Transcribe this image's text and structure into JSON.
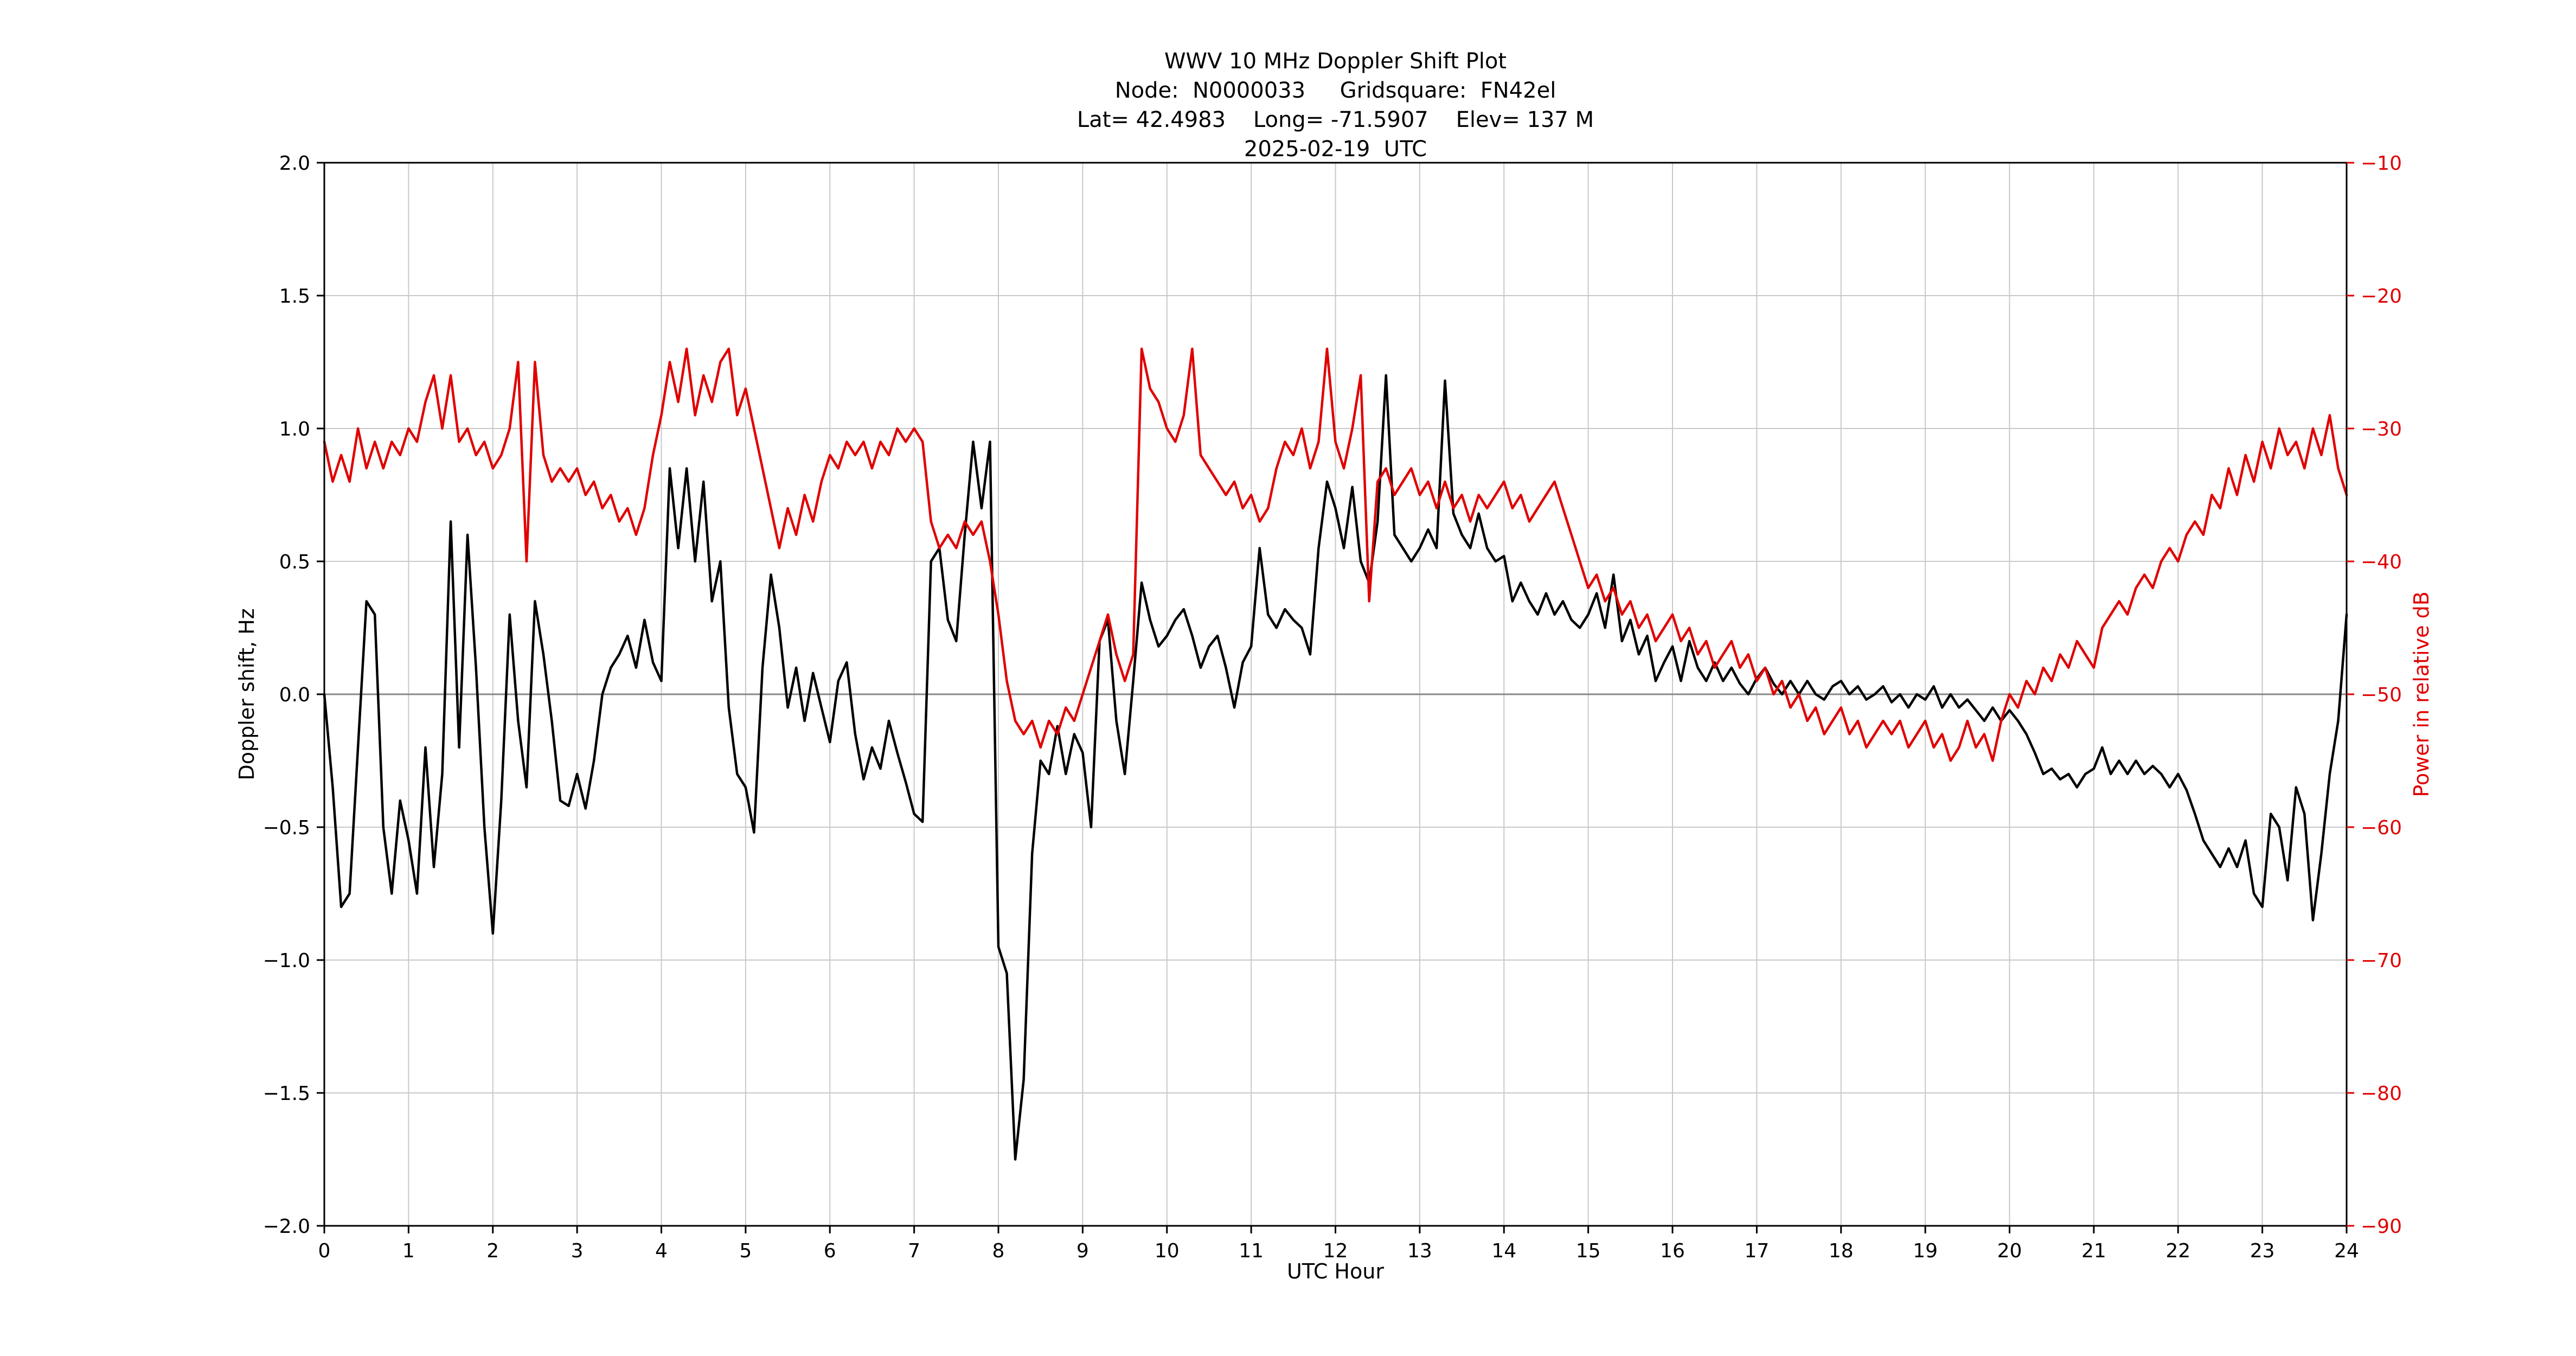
{
  "title": {
    "line1": "WWV 10 MHz Doppler Shift Plot",
    "line2": "Node:  N0000033     Gridsquare:  FN42el",
    "line3": "Lat= 42.4983    Long= -71.5907    Elev= 137 M",
    "line4": "2025-02-19  UTC"
  },
  "chart_data": {
    "type": "line",
    "title": "WWV 10 MHz Doppler Shift Plot",
    "grid": true,
    "legend": "none",
    "style": {
      "grid_color": "#c9c9c9",
      "axis_color": "#000000",
      "background": "#ffffff"
    },
    "zero_line": {
      "value": 0.0,
      "color": "#888888"
    },
    "x": {
      "label": "UTC Hour",
      "min": 0,
      "max": 24,
      "start": 0,
      "step": 0.1,
      "ticks": [
        {
          "v": 0,
          "label": "0"
        },
        {
          "v": 1,
          "label": "1"
        },
        {
          "v": 2,
          "label": "2"
        },
        {
          "v": 3,
          "label": "3"
        },
        {
          "v": 4,
          "label": "4"
        },
        {
          "v": 5,
          "label": "5"
        },
        {
          "v": 6,
          "label": "6"
        },
        {
          "v": 7,
          "label": "7"
        },
        {
          "v": 8,
          "label": "8"
        },
        {
          "v": 9,
          "label": "9"
        },
        {
          "v": 10,
          "label": "10"
        },
        {
          "v": 11,
          "label": "11"
        },
        {
          "v": 12,
          "label": "12"
        },
        {
          "v": 13,
          "label": "13"
        },
        {
          "v": 14,
          "label": "14"
        },
        {
          "v": 15,
          "label": "15"
        },
        {
          "v": 16,
          "label": "16"
        },
        {
          "v": 17,
          "label": "17"
        },
        {
          "v": 18,
          "label": "18"
        },
        {
          "v": 19,
          "label": "19"
        },
        {
          "v": 20,
          "label": "20"
        },
        {
          "v": 21,
          "label": "21"
        },
        {
          "v": 22,
          "label": "22"
        },
        {
          "v": 23,
          "label": "23"
        },
        {
          "v": 24,
          "label": "24"
        }
      ]
    },
    "y_left": {
      "label": "Doppler shift, Hz",
      "min": -2.0,
      "max": 2.0,
      "color": "#000000",
      "ticks": [
        {
          "v": 2.0,
          "label": "2.0"
        },
        {
          "v": 1.5,
          "label": "1.5"
        },
        {
          "v": 1.0,
          "label": "1.0"
        },
        {
          "v": 0.5,
          "label": "0.5"
        },
        {
          "v": 0.0,
          "label": "0.0"
        },
        {
          "v": -0.5,
          "label": "−0.5"
        },
        {
          "v": -1.0,
          "label": "−1.0"
        },
        {
          "v": -1.5,
          "label": "−1.5"
        },
        {
          "v": -2.0,
          "label": "−2.0"
        }
      ]
    },
    "y_right": {
      "label": "Power in relative dB",
      "min": -90,
      "max": -10,
      "color": "#e00000",
      "ticks": [
        {
          "v": -10,
          "label": "−10"
        },
        {
          "v": -20,
          "label": "−20"
        },
        {
          "v": -30,
          "label": "−30"
        },
        {
          "v": -40,
          "label": "−40"
        },
        {
          "v": -50,
          "label": "−50"
        },
        {
          "v": -60,
          "label": "−60"
        },
        {
          "v": -70,
          "label": "−70"
        },
        {
          "v": -80,
          "label": "−80"
        },
        {
          "v": -90,
          "label": "−90"
        }
      ]
    },
    "series": [
      {
        "name": "doppler-shift",
        "axis": "left",
        "color": "#000000",
        "values": [
          0.0,
          -0.35,
          -0.8,
          -0.75,
          -0.2,
          0.35,
          0.3,
          -0.5,
          -0.75,
          -0.4,
          -0.55,
          -0.75,
          -0.2,
          -0.65,
          -0.3,
          0.65,
          -0.2,
          0.6,
          0.1,
          -0.5,
          -0.9,
          -0.4,
          0.3,
          -0.1,
          -0.35,
          0.35,
          0.15,
          -0.1,
          -0.4,
          -0.42,
          -0.3,
          -0.43,
          -0.25,
          0.0,
          0.1,
          0.15,
          0.22,
          0.1,
          0.28,
          0.12,
          0.05,
          0.85,
          0.55,
          0.85,
          0.5,
          0.8,
          0.35,
          0.5,
          -0.05,
          -0.3,
          -0.35,
          -0.52,
          0.1,
          0.45,
          0.25,
          -0.05,
          0.1,
          -0.1,
          0.08,
          -0.05,
          -0.18,
          0.05,
          0.12,
          -0.15,
          -0.32,
          -0.2,
          -0.28,
          -0.1,
          -0.22,
          -0.33,
          -0.45,
          -0.48,
          0.5,
          0.55,
          0.28,
          0.2,
          0.6,
          0.95,
          0.7,
          0.95,
          -0.95,
          -1.05,
          -1.75,
          -1.45,
          -0.6,
          -0.25,
          -0.3,
          -0.12,
          -0.3,
          -0.15,
          -0.22,
          -0.5,
          0.2,
          0.28,
          -0.1,
          -0.3,
          0.05,
          0.42,
          0.28,
          0.18,
          0.22,
          0.28,
          0.32,
          0.22,
          0.1,
          0.18,
          0.22,
          0.1,
          -0.05,
          0.12,
          0.18,
          0.55,
          0.3,
          0.25,
          0.32,
          0.28,
          0.25,
          0.15,
          0.55,
          0.8,
          0.7,
          0.55,
          0.78,
          0.5,
          0.42,
          0.65,
          1.2,
          0.6,
          0.55,
          0.5,
          0.55,
          0.62,
          0.55,
          1.18,
          0.68,
          0.6,
          0.55,
          0.68,
          0.55,
          0.5,
          0.52,
          0.35,
          0.42,
          0.35,
          0.3,
          0.38,
          0.3,
          0.35,
          0.28,
          0.25,
          0.3,
          0.38,
          0.25,
          0.45,
          0.2,
          0.28,
          0.15,
          0.22,
          0.05,
          0.12,
          0.18,
          0.05,
          0.2,
          0.1,
          0.05,
          0.12,
          0.05,
          0.1,
          0.04,
          0.0,
          0.06,
          0.1,
          0.04,
          0.0,
          0.05,
          0.0,
          0.05,
          0.0,
          -0.02,
          0.03,
          0.05,
          0.0,
          0.03,
          -0.02,
          0.0,
          0.03,
          -0.03,
          0.0,
          -0.05,
          0.0,
          -0.02,
          0.03,
          -0.05,
          0.0,
          -0.05,
          -0.02,
          -0.06,
          -0.1,
          -0.05,
          -0.1,
          -0.06,
          -0.1,
          -0.15,
          -0.22,
          -0.3,
          -0.28,
          -0.32,
          -0.3,
          -0.35,
          -0.3,
          -0.28,
          -0.2,
          -0.3,
          -0.25,
          -0.3,
          -0.25,
          -0.3,
          -0.27,
          -0.3,
          -0.35,
          -0.3,
          -0.36,
          -0.45,
          -0.55,
          -0.6,
          -0.65,
          -0.58,
          -0.65,
          -0.55,
          -0.75,
          -0.8,
          -0.45,
          -0.5,
          -0.7,
          -0.35,
          -0.45,
          -0.85,
          -0.6,
          -0.3,
          -0.1,
          0.3
        ]
      },
      {
        "name": "relative-power",
        "axis": "right",
        "color": "#e00000",
        "values": [
          -31,
          -34,
          -32,
          -34,
          -30,
          -33,
          -31,
          -33,
          -31,
          -32,
          -30,
          -31,
          -28,
          -26,
          -30,
          -26,
          -31,
          -30,
          -32,
          -31,
          -33,
          -32,
          -30,
          -25,
          -40,
          -25,
          -32,
          -34,
          -33,
          -34,
          -33,
          -35,
          -34,
          -36,
          -35,
          -37,
          -36,
          -38,
          -36,
          -32,
          -29,
          -25,
          -28,
          -24,
          -29,
          -26,
          -28,
          -25,
          -24,
          -29,
          -27,
          -30,
          -33,
          -36,
          -39,
          -36,
          -38,
          -35,
          -37,
          -34,
          -32,
          -33,
          -31,
          -32,
          -31,
          -33,
          -31,
          -32,
          -30,
          -31,
          -30,
          -31,
          -37,
          -39,
          -38,
          -39,
          -37,
          -38,
          -37,
          -40,
          -44,
          -49,
          -52,
          -53,
          -52,
          -54,
          -52,
          -53,
          -51,
          -52,
          -50,
          -48,
          -46,
          -44,
          -47,
          -49,
          -47,
          -24,
          -27,
          -28,
          -30,
          -31,
          -29,
          -24,
          -32,
          -33,
          -34,
          -35,
          -34,
          -36,
          -35,
          -37,
          -36,
          -33,
          -31,
          -32,
          -30,
          -33,
          -31,
          -24,
          -31,
          -33,
          -30,
          -26,
          -43,
          -34,
          -33,
          -35,
          -34,
          -33,
          -35,
          -34,
          -36,
          -34,
          -36,
          -35,
          -37,
          -35,
          -36,
          -35,
          -34,
          -36,
          -35,
          -37,
          -36,
          -35,
          -34,
          -36,
          -38,
          -40,
          -42,
          -41,
          -43,
          -42,
          -44,
          -43,
          -45,
          -44,
          -46,
          -45,
          -44,
          -46,
          -45,
          -47,
          -46,
          -48,
          -47,
          -46,
          -48,
          -47,
          -49,
          -48,
          -50,
          -49,
          -51,
          -50,
          -52,
          -51,
          -53,
          -52,
          -51,
          -53,
          -52,
          -54,
          -53,
          -52,
          -53,
          -52,
          -54,
          -53,
          -52,
          -54,
          -53,
          -55,
          -54,
          -52,
          -54,
          -53,
          -55,
          -52,
          -50,
          -51,
          -49,
          -50,
          -48,
          -49,
          -47,
          -48,
          -46,
          -47,
          -48,
          -45,
          -44,
          -43,
          -44,
          -42,
          -41,
          -42,
          -40,
          -39,
          -40,
          -38,
          -37,
          -38,
          -35,
          -36,
          -33,
          -35,
          -32,
          -34,
          -31,
          -33,
          -30,
          -32,
          -31,
          -33,
          -30,
          -32,
          -29,
          -33,
          -35
        ]
      }
    ]
  }
}
